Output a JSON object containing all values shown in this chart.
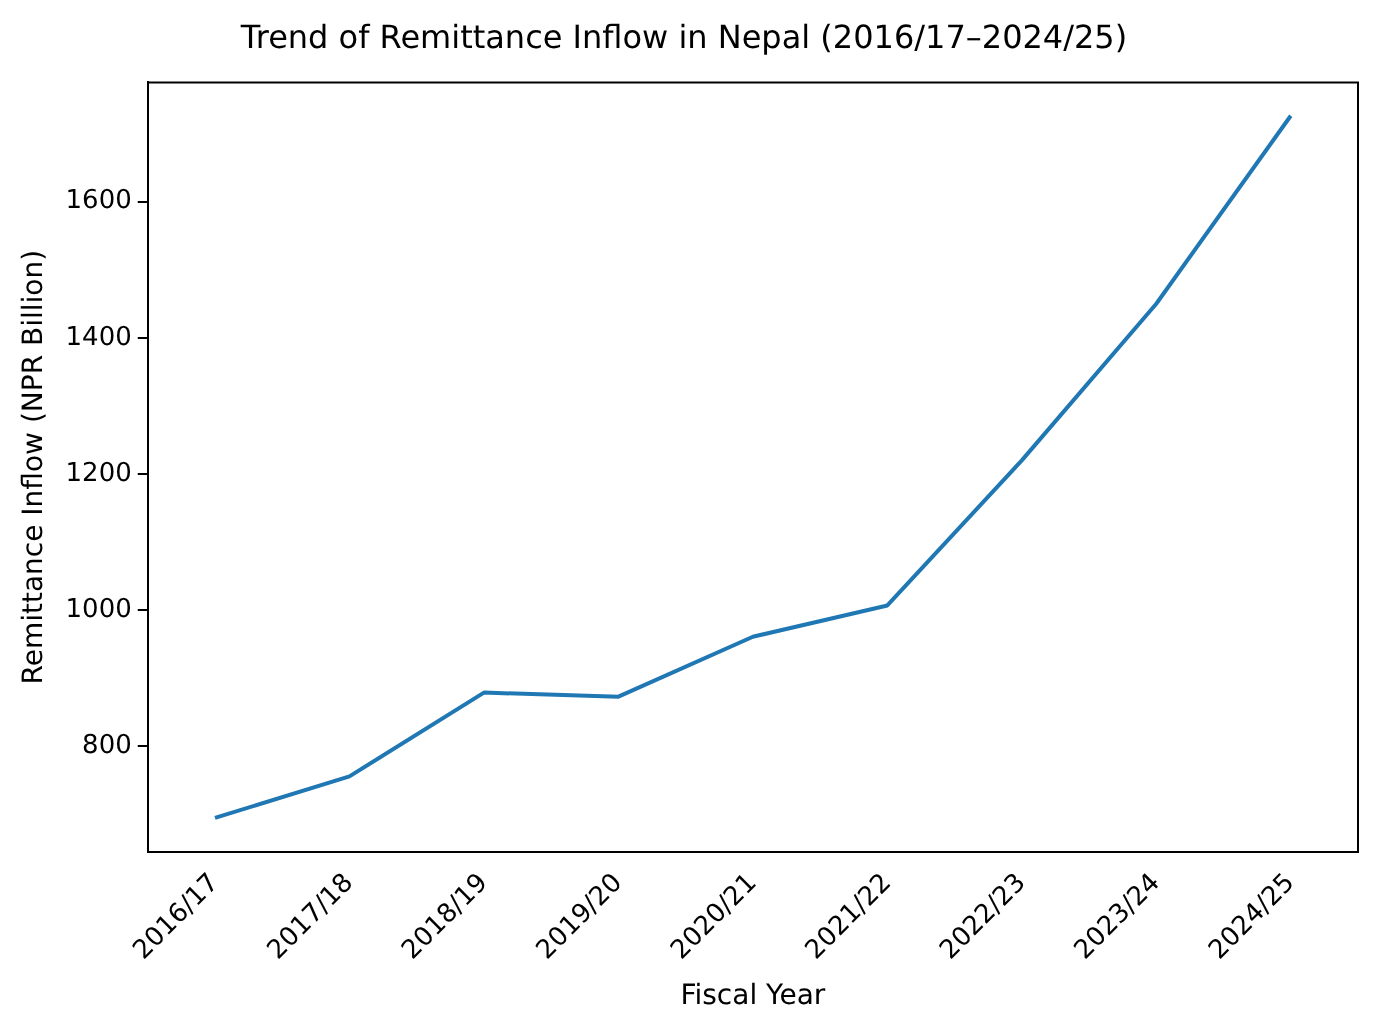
{
  "chart_data": {
    "type": "line",
    "title": "Trend of Remittance Inflow in Nepal (2016/17–2024/25)",
    "xlabel": "Fiscal Year",
    "ylabel": "Remittance Inflow (NPR Billion)",
    "categories": [
      "2016/17",
      "2017/18",
      "2018/19",
      "2019/20",
      "2020/21",
      "2021/22",
      "2022/23",
      "2023/24",
      "2024/25"
    ],
    "series": [
      {
        "color": "#1f77b4",
        "values": [
          695,
          756,
          879,
          873,
          961,
          1007,
          1220,
          1450,
          1726
        ]
      }
    ],
    "ylim": [
      645,
      1775
    ],
    "yticks": [
      800,
      1000,
      1200,
      1400,
      1600
    ],
    "grid": false,
    "legend": false,
    "marker": "none",
    "line_style": "solid"
  }
}
